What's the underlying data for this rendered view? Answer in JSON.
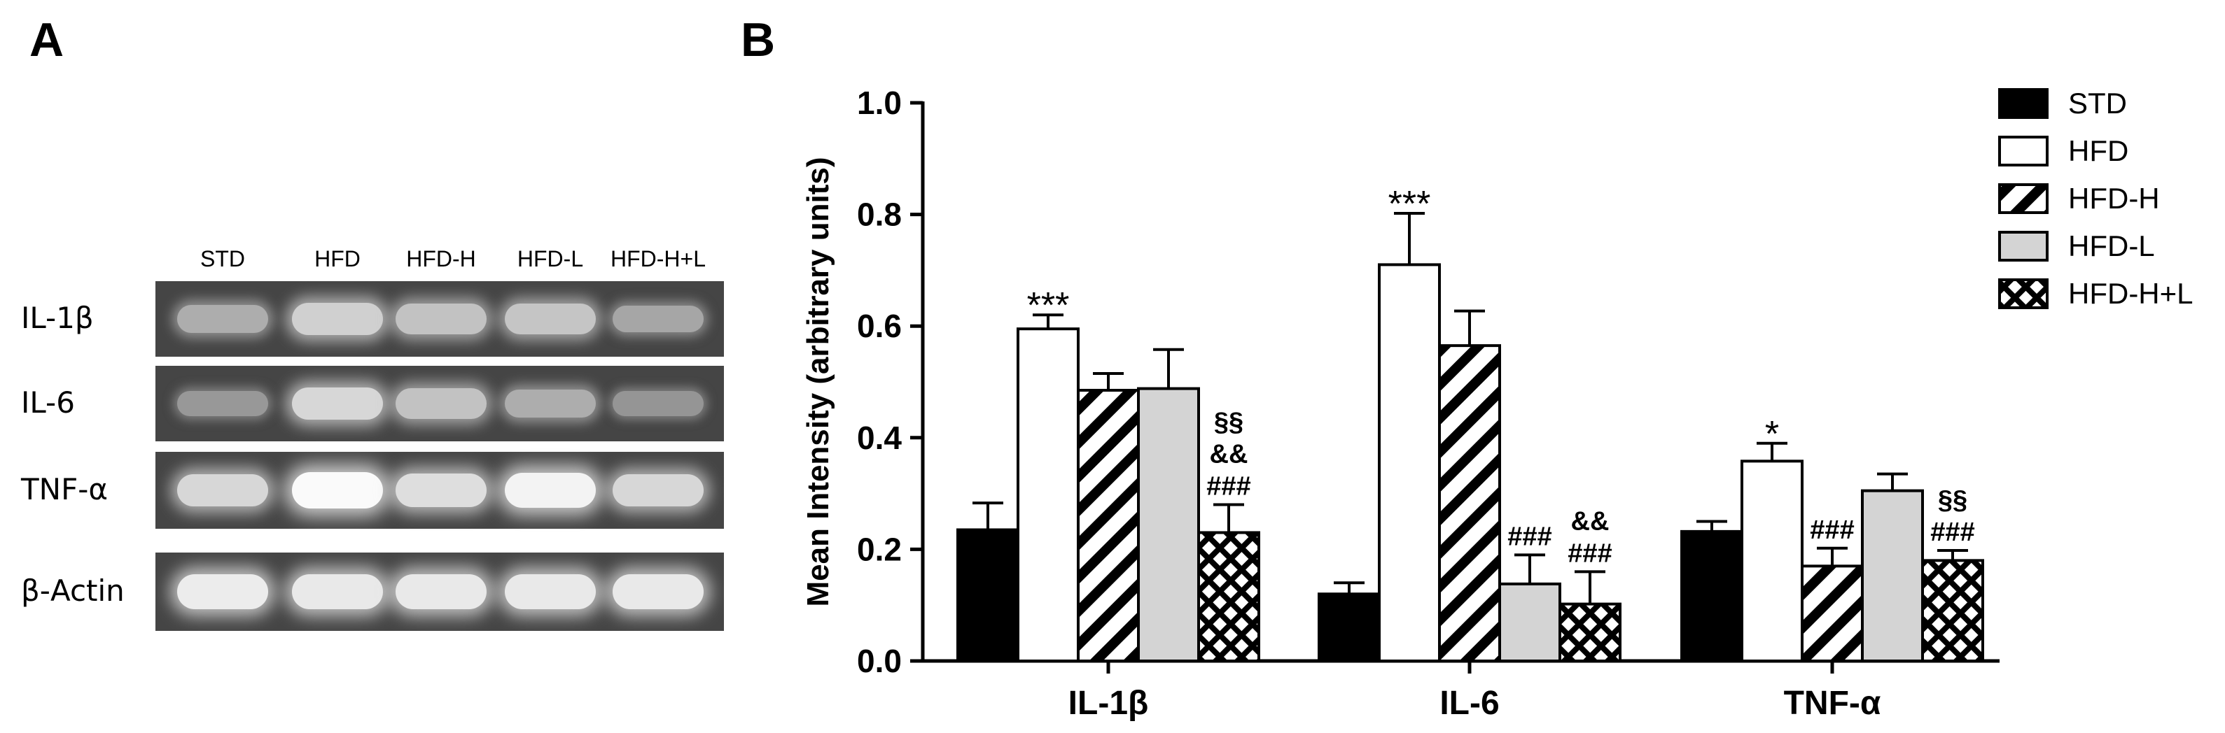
{
  "panel_a": {
    "letter": "A",
    "lane_labels": [
      "STD",
      "HFD",
      "HFD-H",
      "HFD-L",
      "HFD-H+L"
    ],
    "rows": [
      {
        "label": "IL-1β",
        "intensity": [
          0.45,
          0.7,
          0.6,
          0.62,
          0.4
        ]
      },
      {
        "label": "IL-6",
        "intensity": [
          0.3,
          0.75,
          0.6,
          0.45,
          0.28
        ]
      },
      {
        "label": "TNF-α",
        "intensity": [
          0.75,
          1.0,
          0.8,
          0.95,
          0.75
        ]
      },
      {
        "label": "β-Actin",
        "intensity": [
          0.9,
          0.88,
          0.88,
          0.88,
          0.88
        ]
      }
    ]
  },
  "panel_b": {
    "letter": "B"
  },
  "chart_data": {
    "type": "bar",
    "ylabel": "Mean Intensity (arbitrary units)",
    "ylim": [
      0,
      1.0
    ],
    "yticks": [
      "0.0",
      "0.2",
      "0.4",
      "0.6",
      "0.8",
      "1.0"
    ],
    "categories": [
      "IL-1β",
      "IL-6",
      "TNF-α"
    ],
    "series": [
      {
        "name": "STD",
        "values": [
          0.235,
          0.12,
          0.232
        ],
        "errors": [
          0.048,
          0.02,
          0.018
        ],
        "pattern": "black"
      },
      {
        "name": "HFD",
        "values": [
          0.595,
          0.71,
          0.358
        ],
        "errors": [
          0.025,
          0.092,
          0.032
        ],
        "pattern": "white"
      },
      {
        "name": "HFD-H",
        "values": [
          0.485,
          0.565,
          0.17
        ],
        "errors": [
          0.03,
          0.062,
          0.032
        ],
        "pattern": "diagonal"
      },
      {
        "name": "HFD-L",
        "values": [
          0.488,
          0.138,
          0.305
        ],
        "errors": [
          0.07,
          0.052,
          0.03
        ],
        "pattern": "gray"
      },
      {
        "name": "HFD-H+L",
        "values": [
          0.23,
          0.102,
          0.18
        ],
        "errors": [
          0.05,
          0.058,
          0.018
        ],
        "pattern": "crosshatch"
      }
    ],
    "annotations": [
      {
        "category": 0,
        "series": 1,
        "lines": [
          "***"
        ]
      },
      {
        "category": 0,
        "series": 4,
        "lines": [
          "§§",
          "&&",
          "###"
        ]
      },
      {
        "category": 1,
        "series": 1,
        "lines": [
          "***"
        ]
      },
      {
        "category": 1,
        "series": 3,
        "lines": [
          "###"
        ]
      },
      {
        "category": 1,
        "series": 4,
        "lines": [
          "&&",
          "###"
        ]
      },
      {
        "category": 2,
        "series": 1,
        "lines": [
          "*"
        ]
      },
      {
        "category": 2,
        "series": 2,
        "lines": [
          "###"
        ]
      },
      {
        "category": 2,
        "series": 4,
        "lines": [
          "§§",
          "###"
        ]
      }
    ],
    "legend": {
      "position": "top-right"
    }
  }
}
